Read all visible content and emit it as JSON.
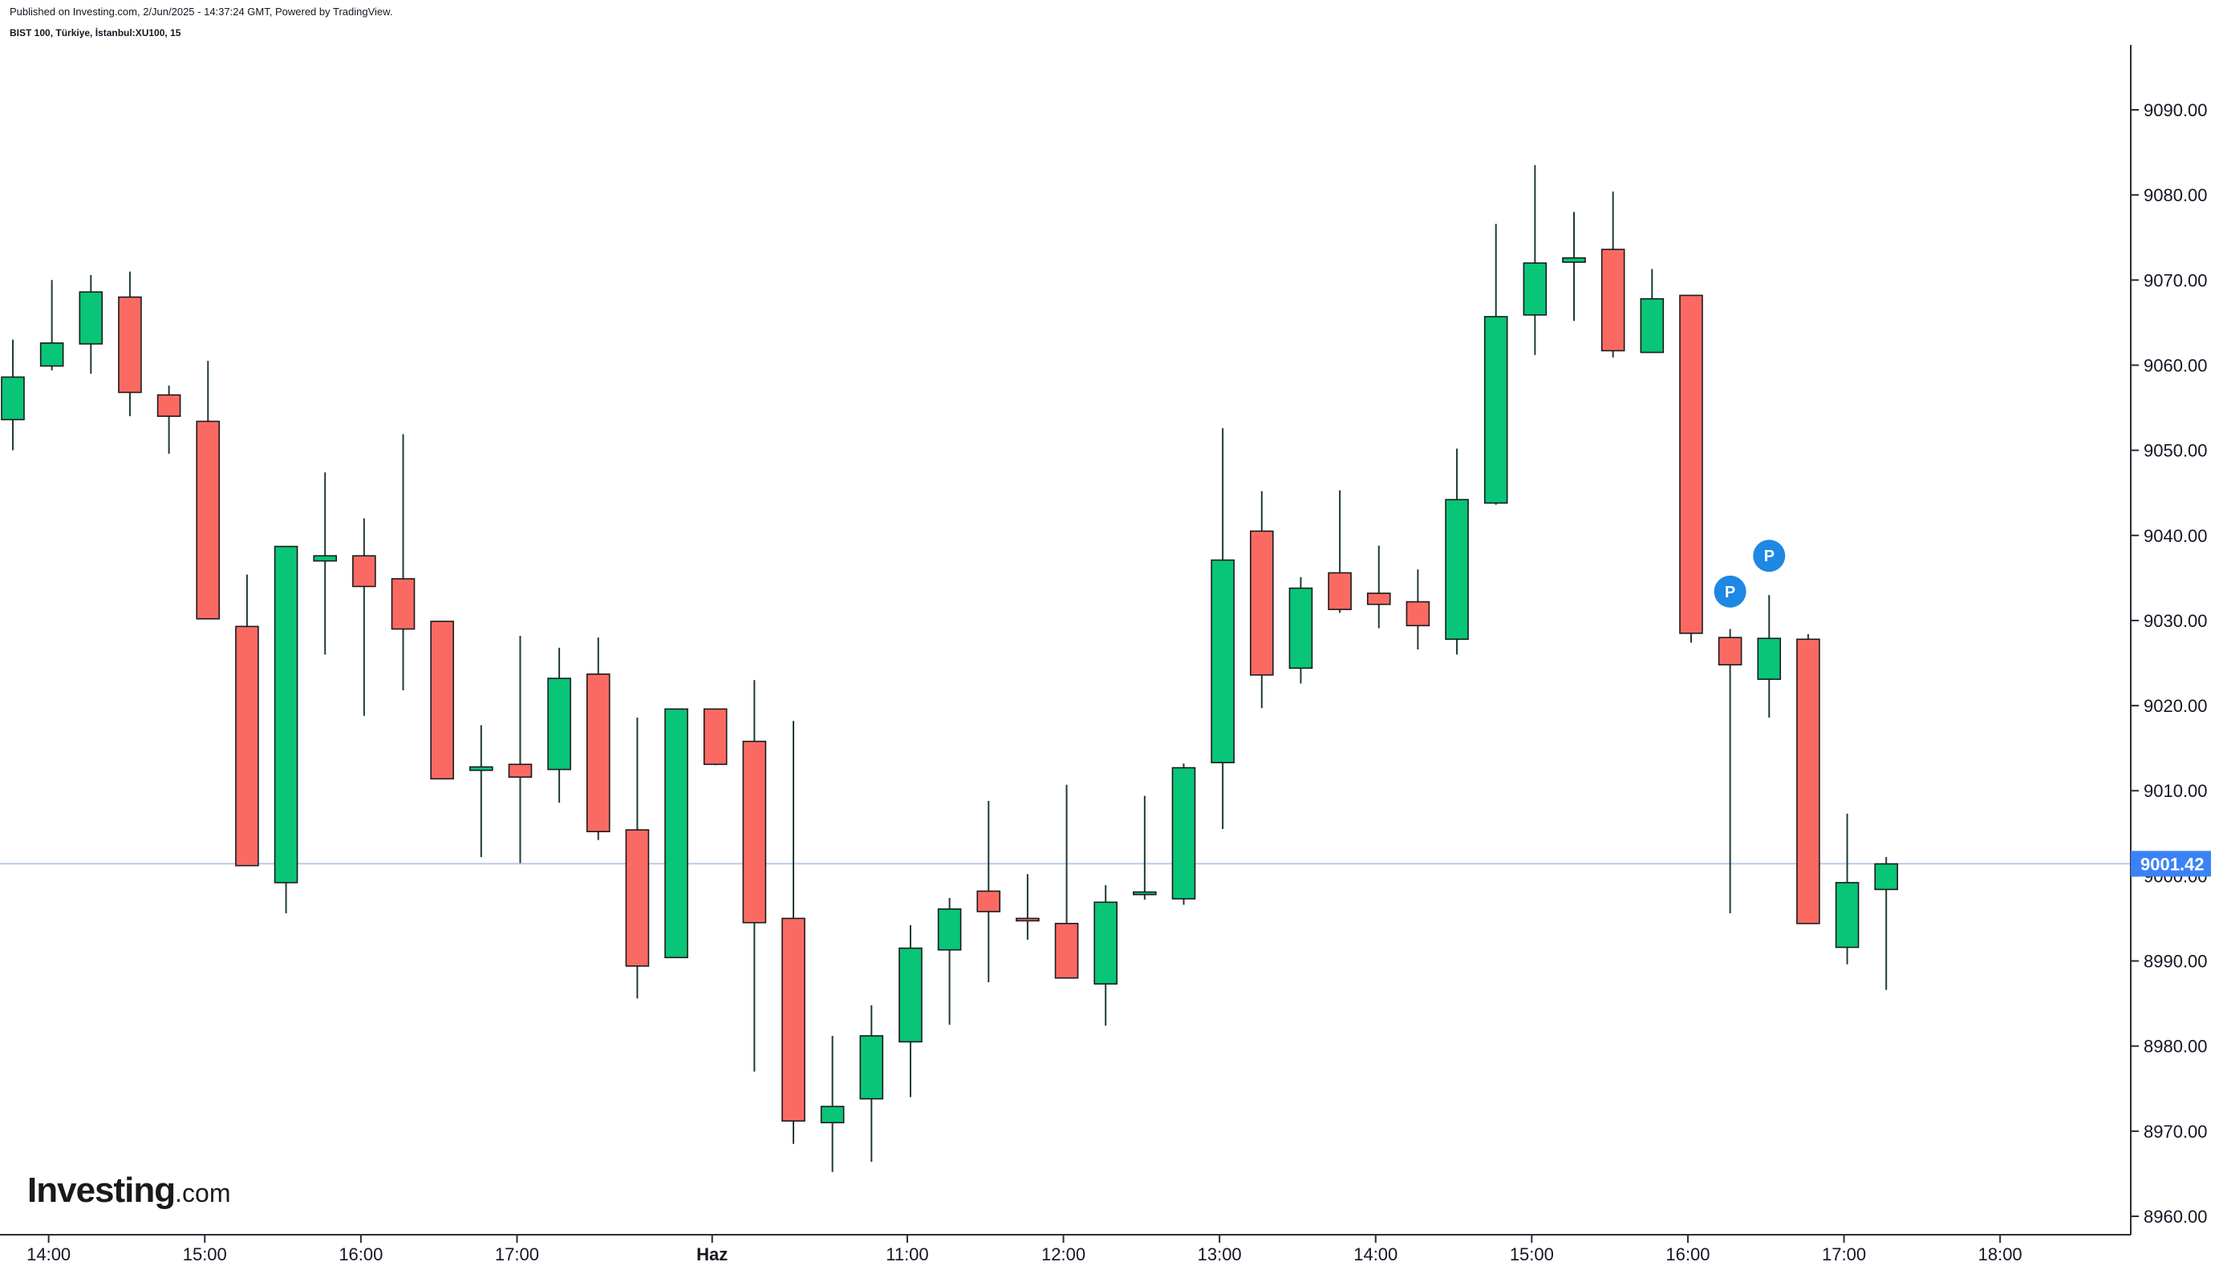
{
  "header": {
    "published": "Published on Investing.com, 2/Jun/2025 - 14:37:24 GMT, Powered by TradingView.",
    "symbol": "BIST 100, Türkiye, İstanbul:XU100, 15"
  },
  "logo": {
    "brand": "Investing",
    "suffix": ".com"
  },
  "colors": {
    "up": "#08c577",
    "down": "#fa6a63",
    "wick": "#1f3b36",
    "price_line": "#b9cbe6",
    "price_label": "#3b82f6",
    "marker": "#1e88e5"
  },
  "chart_data": {
    "type": "candlestick",
    "title": "",
    "xlabel": "",
    "ylabel": "",
    "ylim": [
      8957,
      9097
    ],
    "yticks": [
      8960,
      8970,
      8980,
      8990,
      9000,
      9010,
      9020,
      9030,
      9040,
      9050,
      9060,
      9070,
      9080,
      9090
    ],
    "ytick_labels": [
      "8960.00",
      "8970.00",
      "8980.00",
      "8990.00",
      "9000.00",
      "9010.00",
      "9020.00",
      "9030.00",
      "9040.00",
      "9050.00",
      "9060.00",
      "9070.00",
      "9080.00",
      "9090.00"
    ],
    "xticks": [
      {
        "label": "14:00",
        "bar": 1
      },
      {
        "label": "15:00",
        "bar": 5
      },
      {
        "label": "16:00",
        "bar": 9
      },
      {
        "label": "17:00",
        "bar": 13
      },
      {
        "label": "Haz",
        "bar": 18
      },
      {
        "label": "11:00",
        "bar": 23
      },
      {
        "label": "12:00",
        "bar": 27
      },
      {
        "label": "13:00",
        "bar": 31
      },
      {
        "label": "14:00",
        "bar": 35
      },
      {
        "label": "15:00",
        "bar": 39
      },
      {
        "label": "16:00",
        "bar": 43
      },
      {
        "label": "17:00",
        "bar": 47
      },
      {
        "label": "18:00",
        "bar": 51
      }
    ],
    "candles": [
      {
        "o": 9053.6,
        "h": 9063.0,
        "l": 9050.0,
        "c": 9058.6
      },
      {
        "o": 9059.9,
        "h": 9070.0,
        "l": 9059.4,
        "c": 9062.6
      },
      {
        "o": 9062.5,
        "h": 9070.6,
        "l": 9059.0,
        "c": 9068.6
      },
      {
        "o": 9068.0,
        "h": 9071.0,
        "l": 9054.0,
        "c": 9056.8
      },
      {
        "o": 9056.5,
        "h": 9057.6,
        "l": 9049.6,
        "c": 9054.0
      },
      {
        "o": 9053.4,
        "h": 9060.5,
        "l": 9030.3,
        "c": 9030.2
      },
      {
        "o": 9029.3,
        "h": 9035.4,
        "l": 9001.5,
        "c": 9001.2
      },
      {
        "o": 8999.2,
        "h": 9038.7,
        "l": 8995.6,
        "c": 9038.7
      },
      {
        "o": 9037.0,
        "h": 9047.4,
        "l": 9026.0,
        "c": 9037.6
      },
      {
        "o": 9037.6,
        "h": 9042.0,
        "l": 9018.8,
        "c": 9034.0
      },
      {
        "o": 9034.9,
        "h": 9051.9,
        "l": 9021.8,
        "c": 9029.0
      },
      {
        "o": 9029.9,
        "h": 9029.9,
        "l": 9011.5,
        "c": 9011.4
      },
      {
        "o": 9012.4,
        "h": 9017.7,
        "l": 9002.2,
        "c": 9012.8
      },
      {
        "o": 9013.1,
        "h": 9028.2,
        "l": 9001.5,
        "c": 9011.6
      },
      {
        "o": 9012.5,
        "h": 9026.8,
        "l": 9008.6,
        "c": 9023.2
      },
      {
        "o": 9023.7,
        "h": 9028.0,
        "l": 9004.2,
        "c": 9005.2
      },
      {
        "o": 9005.4,
        "h": 9018.6,
        "l": 8985.6,
        "c": 8989.4
      },
      {
        "o": 8990.4,
        "h": 9019.6,
        "l": 8990.4,
        "c": 9019.6
      },
      {
        "o": 9019.6,
        "h": 9019.6,
        "l": 9013.0,
        "c": 9013.1
      },
      {
        "o": 9015.8,
        "h": 9023.0,
        "l": 8977.0,
        "c": 8994.5
      },
      {
        "o": 8995.0,
        "h": 9018.2,
        "l": 8968.5,
        "c": 8971.2
      },
      {
        "o": 8971.0,
        "h": 8981.2,
        "l": 8965.2,
        "c": 8972.9
      },
      {
        "o": 8973.8,
        "h": 8984.8,
        "l": 8966.4,
        "c": 8981.2
      },
      {
        "o": 8980.5,
        "h": 8994.2,
        "l": 8974.0,
        "c": 8991.5
      },
      {
        "o": 8991.3,
        "h": 8997.4,
        "l": 8982.5,
        "c": 8996.1
      },
      {
        "o": 8998.2,
        "h": 9008.8,
        "l": 8987.5,
        "c": 8995.8
      },
      {
        "o": 8995.0,
        "h": 9000.2,
        "l": 8992.5,
        "c": 8994.9
      },
      {
        "o": 8994.4,
        "h": 9010.7,
        "l": 8988.2,
        "c": 8988.0
      },
      {
        "o": 8987.3,
        "h": 8998.9,
        "l": 8982.4,
        "c": 8996.9
      },
      {
        "o": 8997.8,
        "h": 9009.4,
        "l": 8997.2,
        "c": 8998.1
      },
      {
        "o": 8997.3,
        "h": 9013.2,
        "l": 8996.6,
        "c": 9012.7
      },
      {
        "o": 9013.3,
        "h": 9052.6,
        "l": 9005.5,
        "c": 9037.1
      },
      {
        "o": 9040.5,
        "h": 9045.2,
        "l": 9019.7,
        "c": 9023.6
      },
      {
        "o": 9024.4,
        "h": 9035.1,
        "l": 9022.6,
        "c": 9033.8
      },
      {
        "o": 9035.6,
        "h": 9045.3,
        "l": 9030.9,
        "c": 9031.3
      },
      {
        "o": 9033.2,
        "h": 9038.8,
        "l": 9029.1,
        "c": 9031.9
      },
      {
        "o": 9032.2,
        "h": 9036.0,
        "l": 9026.6,
        "c": 9029.4
      },
      {
        "o": 9027.8,
        "h": 9050.2,
        "l": 9026.0,
        "c": 9044.2
      },
      {
        "o": 9043.8,
        "h": 9076.6,
        "l": 9043.6,
        "c": 9065.7
      },
      {
        "o": 9065.9,
        "h": 9083.5,
        "l": 9061.2,
        "c": 9072.0
      },
      {
        "o": 9072.1,
        "h": 9078.0,
        "l": 9065.2,
        "c": 9072.6
      },
      {
        "o": 9073.6,
        "h": 9080.4,
        "l": 9060.9,
        "c": 9061.7
      },
      {
        "o": 9061.5,
        "h": 9071.3,
        "l": 9061.5,
        "c": 9067.8
      },
      {
        "o": 9068.2,
        "h": 9068.2,
        "l": 9027.4,
        "c": 9028.5
      },
      {
        "o": 9028.0,
        "h": 9029.0,
        "l": 8995.6,
        "c": 9024.8
      },
      {
        "o": 9023.1,
        "h": 9033.0,
        "l": 9018.6,
        "c": 9027.9
      },
      {
        "o": 9027.8,
        "h": 9028.4,
        "l": 8994.4,
        "c": 8994.4
      },
      {
        "o": 8991.6,
        "h": 9007.3,
        "l": 8989.6,
        "c": 8999.2
      },
      {
        "o": 8998.4,
        "h": 9002.2,
        "l": 8986.6,
        "c": 9001.4
      }
    ],
    "current_price": 9001.42,
    "current_price_label": "9001.42",
    "markers": [
      {
        "label": "P",
        "bar": 44,
        "price": 9033.4
      },
      {
        "label": "P",
        "bar": 45,
        "price": 9037.6
      }
    ]
  }
}
